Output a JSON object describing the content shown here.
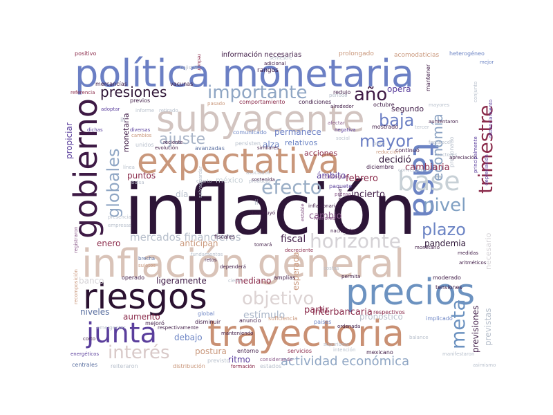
{
  "words": [
    {
      "text": "inflación",
      "color": "#2d1537"
    },
    {
      "text": "inflación general",
      "color": "#d9c3b8"
    },
    {
      "text": "política monetaria",
      "color": "#6b7fc4"
    },
    {
      "text": "subyacente",
      "color": "#d2c4c0"
    },
    {
      "text": "expectativa",
      "color": "#c9977b"
    },
    {
      "text": "trayectoria",
      "color": "#c99073"
    },
    {
      "text": "riesgos",
      "color": "#2a1130"
    },
    {
      "text": "precios",
      "color": "#6c92c0"
    },
    {
      "text": "tasa",
      "color": "#6c84c4"
    },
    {
      "text": "gobierno",
      "color": "#3e1a45"
    },
    {
      "text": "junta",
      "color": "#5a3e9c"
    },
    {
      "text": "base",
      "color": "#c7d0d6"
    },
    {
      "text": "horizonte",
      "color": "#d5d2d6"
    },
    {
      "text": "efecto",
      "color": "#9aaec6"
    },
    {
      "text": "importante",
      "color": "#8fa6c4"
    },
    {
      "text": "trimestre",
      "color": "#8a2a4a"
    },
    {
      "text": "globales",
      "color": "#8fa6c4"
    },
    {
      "text": "objetivo",
      "color": "#dcd3d3"
    },
    {
      "text": "interés",
      "color": "#d8c9c8"
    },
    {
      "text": "presiones",
      "color": "#2f1536"
    },
    {
      "text": "ajuste",
      "color": "#a9b5c8"
    },
    {
      "text": "año",
      "color": "#3e1a45"
    },
    {
      "text": "baja",
      "color": "#6b7fc4"
    },
    {
      "text": "mayor",
      "color": "#6b7fc4"
    },
    {
      "text": "nivel",
      "color": "#7f9fc2"
    },
    {
      "text": "plazo",
      "color": "#6c84c4"
    },
    {
      "text": "meta",
      "color": "#6c92c0"
    },
    {
      "text": "economía",
      "color": "#8aa2c2"
    },
    {
      "text": "actividad económica",
      "color": "#8fa6c4"
    },
    {
      "text": "mercados financieros",
      "color": "#b8c0cc"
    },
    {
      "text": "interbancaria",
      "color": "#8a2a4a"
    },
    {
      "text": "pandemia",
      "color": "#2d1537"
    },
    {
      "text": "fiscal",
      "color": "#3e1a45"
    },
    {
      "text": "estímulo",
      "color": "#a9b5c8"
    },
    {
      "text": "cambiaria",
      "color": "#8a2a4a"
    },
    {
      "text": "decidió",
      "color": "#2d1537"
    },
    {
      "text": "febrero",
      "color": "#8a2a4a"
    },
    {
      "text": "cambio",
      "color": "#8a5a8a"
    },
    {
      "text": "incierto",
      "color": "#3e1a45"
    },
    {
      "text": "ámbito",
      "color": "#5a3e9c"
    },
    {
      "text": "partir",
      "color": "#8a2a4a"
    },
    {
      "text": "aumento",
      "color": "#8a2a4a"
    },
    {
      "text": "niveles",
      "color": "#5a6fa0"
    },
    {
      "text": "debajo",
      "color": "#6c84c4"
    },
    {
      "text": "mediano",
      "color": "#8a2a4a"
    },
    {
      "text": "ligeramente",
      "color": "#3e1a45"
    },
    {
      "text": "puntos",
      "color": "#8a2a4a"
    },
    {
      "text": "enero",
      "color": "#8a2a4a"
    },
    {
      "text": "anticipan",
      "color": "#c9977b"
    },
    {
      "text": "esperada",
      "color": "#c9977b"
    },
    {
      "text": "pronóstico",
      "color": "#b8c0cc"
    },
    {
      "text": "previsiones",
      "color": "#3e1a45"
    },
    {
      "text": "previstas",
      "color": "#b8c0cc"
    },
    {
      "text": "necesario",
      "color": "#d5d2d6"
    },
    {
      "text": "permanece",
      "color": "#6b7fc4"
    },
    {
      "text": "relativos",
      "color": "#6c84c4"
    },
    {
      "text": "alza",
      "color": "#6c84c4"
    },
    {
      "text": "acciones",
      "color": "#8a2a4a"
    },
    {
      "text": "segundo",
      "color": "#3e1a45"
    },
    {
      "text": "opera",
      "color": "#5a3e9c"
    },
    {
      "text": "postura",
      "color": "#c9977b"
    },
    {
      "text": "ritmo",
      "color": "#5a3e9c"
    },
    {
      "text": "día",
      "color": "#b8c0cc"
    },
    {
      "text": "méxico",
      "color": "#c7d0d6"
    },
    {
      "text": "banco",
      "color": "#d5d2d6"
    },
    {
      "text": "propiciar",
      "color": "#5a3e9c"
    },
    {
      "text": "monetaria",
      "color": "#3e1a45"
    },
    {
      "text": "información necesarias",
      "color": "#3e1a45"
    },
    {
      "text": "prolongado",
      "color": "#c9977b"
    },
    {
      "text": "acomodaticias",
      "color": "#c9977b"
    },
    {
      "text": "heterogéneo",
      "color": "#6c84c4"
    },
    {
      "text": "positivo",
      "color": "#8a2a4a"
    },
    {
      "text": "rangos",
      "color": "#3e1a45"
    },
    {
      "text": "mercancías",
      "color": "#3e1a45"
    },
    {
      "text": "vacunas",
      "color": "#3e1a45"
    },
    {
      "text": "comportamiento",
      "color": "#8a2a4a"
    },
    {
      "text": "condiciones",
      "color": "#3e1a45"
    },
    {
      "text": "octubre",
      "color": "#3e1a45"
    },
    {
      "text": "comunicado",
      "color": "#6c84c4"
    },
    {
      "text": "persisten",
      "color": "#b8c0cc"
    },
    {
      "text": "avanzadas",
      "color": "#5a6fa0"
    },
    {
      "text": "contagios",
      "color": "#8a5a8a"
    },
    {
      "text": "paquete",
      "color": "#5a3e9c"
    },
    {
      "text": "diciembre",
      "color": "#3e1a45"
    },
    {
      "text": "continuó",
      "color": "#3e1a45"
    },
    {
      "text": "moderado",
      "color": "#3e1a45"
    },
    {
      "text": "servicios",
      "color": "#8a2a4a"
    },
    {
      "text": "mexicano",
      "color": "#3e1a45"
    },
    {
      "text": "entorno",
      "color": "#3e1a45"
    },
    {
      "text": "distribución",
      "color": "#c9977b"
    },
    {
      "text": "estados",
      "color": "#b8c0cc"
    },
    {
      "text": "respectivos",
      "color": "#8a2a4a"
    },
    {
      "text": "implicado",
      "color": "#6c84c4"
    },
    {
      "text": "países",
      "color": "#6c84c4"
    },
    {
      "text": "suficiencia",
      "color": "#c9977b"
    },
    {
      "text": "anuncio",
      "color": "#3e1a45"
    },
    {
      "text": "global",
      "color": "#6c84c4"
    },
    {
      "text": "disminuir",
      "color": "#3e1a45"
    },
    {
      "text": "centrales",
      "color": "#5a6fa0"
    },
    {
      "text": "amplias",
      "color": "#3e1a45"
    },
    {
      "text": "operado",
      "color": "#3e1a45"
    },
    {
      "text": "mostrado",
      "color": "#3e1a45"
    },
    {
      "text": "redujo",
      "color": "#3e1a45"
    },
    {
      "text": "previos",
      "color": "#3e1a45"
    },
    {
      "text": "iii",
      "color": "#b8c0cc"
    },
    {
      "text": "ii",
      "color": "#b8c0cc"
    },
    {
      "text": "unidos",
      "color": "#b8c0cc"
    },
    {
      "text": "mantener",
      "color": "#3e1a45"
    },
    {
      "text": "presionado",
      "color": "#b8c0cc"
    },
    {
      "text": "mejoró",
      "color": "#3e1a45"
    },
    {
      "text": "retos",
      "color": "#3e1a45"
    },
    {
      "text": "tensiones",
      "color": "#3e1a45"
    },
    {
      "text": "dependerá",
      "color": "#3e1a45"
    },
    {
      "text": "cierre",
      "color": "#b8c0cc"
    },
    {
      "text": "costos",
      "color": "#b8c0cc"
    },
    {
      "text": "energéticos",
      "color": "#5a3e9c"
    },
    {
      "text": "corto",
      "color": "#3e1a45"
    },
    {
      "text": "reiteraron",
      "color": "#b8c0cc"
    },
    {
      "text": "previsto",
      "color": "#b8c0cc"
    },
    {
      "text": "formación",
      "color": "#8a2a4a"
    },
    {
      "text": "fiscales",
      "color": "#3e1a45"
    },
    {
      "text": "emergentes",
      "color": "#b8c0cc"
    },
    {
      "text": "sujetos",
      "color": "#c9977b"
    },
    {
      "text": "brecha",
      "color": "#5a6fa0"
    },
    {
      "text": "presencia",
      "color": "#b8c0cc"
    },
    {
      "text": "empresas",
      "color": "#b8c0cc"
    },
    {
      "text": "evolución",
      "color": "#3e1a45"
    },
    {
      "text": "diversas",
      "color": "#5a3e9c"
    },
    {
      "text": "cambios",
      "color": "#c9977b"
    },
    {
      "text": "dichas",
      "color": "#5a3e9c"
    },
    {
      "text": "referencia",
      "color": "#8a2a4a"
    },
    {
      "text": "reducción",
      "color": "#c9977b"
    },
    {
      "text": "negativa",
      "color": "#5a3e9c"
    },
    {
      "text": "fortalecer",
      "color": "#b8c0cc"
    },
    {
      "text": "aumentaron",
      "color": "#3e1a45"
    },
    {
      "text": "tercer",
      "color": "#b8c0cc"
    },
    {
      "text": "mayores",
      "color": "#b8c0cc"
    },
    {
      "text": "sectores",
      "color": "#b8c0cc"
    },
    {
      "text": "apreciación",
      "color": "#3e1a45"
    },
    {
      "text": "principalmente",
      "color": "#5a3e9c"
    },
    {
      "text": "registraron",
      "color": "#8a5a8a"
    },
    {
      "text": "recomposición",
      "color": "#c9977b"
    },
    {
      "text": "inflacionarias",
      "color": "#3e1a45"
    },
    {
      "text": "medidas",
      "color": "#3e1a45"
    },
    {
      "text": "monetario",
      "color": "#3e1a45"
    },
    {
      "text": "nacionales",
      "color": "#3e1a45"
    },
    {
      "text": "decreciente",
      "color": "#8a2a4a"
    },
    {
      "text": "tomará",
      "color": "#3e1a45"
    },
    {
      "text": "menores",
      "color": "#8a5a8a"
    },
    {
      "text": "disminuyó",
      "color": "#3e1a45"
    },
    {
      "text": "respectivamente",
      "color": "#3e1a45"
    },
    {
      "text": "manteniendo",
      "color": "#3e1a45"
    },
    {
      "text": "prensa",
      "color": "#8a5a8a"
    },
    {
      "text": "considerando",
      "color": "#8a5a8a"
    },
    {
      "text": "intención",
      "color": "#b8c0cc"
    },
    {
      "text": "superiores",
      "color": "#b8c0cc"
    },
    {
      "text": "manifestaron",
      "color": "#b8c0cc"
    },
    {
      "text": "ordenada",
      "color": "#3e1a45"
    },
    {
      "text": "permita",
      "color": "#3e1a45"
    },
    {
      "text": "balance",
      "color": "#b8c0cc"
    },
    {
      "text": "asimismo",
      "color": "#b8c0cc"
    },
    {
      "text": "pasado",
      "color": "#c9977b"
    },
    {
      "text": "alrededor",
      "color": "#3e1a45"
    },
    {
      "text": "afectar",
      "color": "#8a5a8a"
    },
    {
      "text": "social",
      "color": "#b8c0cc"
    },
    {
      "text": "similares",
      "color": "#3e1a45"
    },
    {
      "text": "asociados",
      "color": "#b8c0cc"
    },
    {
      "text": "sostenida",
      "color": "#3e1a45"
    },
    {
      "text": "convergencia",
      "color": "#b8c0cc"
    },
    {
      "text": "semestre",
      "color": "#b8c0cc"
    },
    {
      "text": "adicional",
      "color": "#3e1a45"
    },
    {
      "text": "peso",
      "color": "#b8c0cc"
    },
    {
      "text": "reducir",
      "color": "#8a2a4a"
    },
    {
      "text": "mejor",
      "color": "#6c84c4"
    },
    {
      "text": "bajistas",
      "color": "#b8c0cc"
    },
    {
      "text": "retirado",
      "color": "#b8c0cc"
    },
    {
      "text": "adoptar",
      "color": "#5a3e9c"
    },
    {
      "text": "informe",
      "color": "#b8c0cc"
    },
    {
      "text": "período",
      "color": "#b8c0cc"
    },
    {
      "text": "reciente",
      "color": "#3e1a45"
    },
    {
      "text": "salvaguardar",
      "color": "#b8c0cc"
    },
    {
      "text": "línea",
      "color": "#b8c0cc"
    },
    {
      "text": "bolsa",
      "color": "#b8c0cc"
    },
    {
      "text": "cuarto",
      "color": "#b8c0cc"
    },
    {
      "text": "producto",
      "color": "#b8c0cc"
    },
    {
      "text": "anual",
      "color": "#3e1a45"
    },
    {
      "text": "conjunto",
      "color": "#b8c0cc"
    },
    {
      "text": "depreciación",
      "color": "#5a3e9c"
    },
    {
      "text": "aritméticos",
      "color": "#3e1a45"
    },
    {
      "text": "distanciamiento",
      "color": "#5a3e9c"
    },
    {
      "text": "fundamentos",
      "color": "#b8c0cc"
    },
    {
      "text": "estable",
      "color": "#8a5a8a"
    }
  ]
}
